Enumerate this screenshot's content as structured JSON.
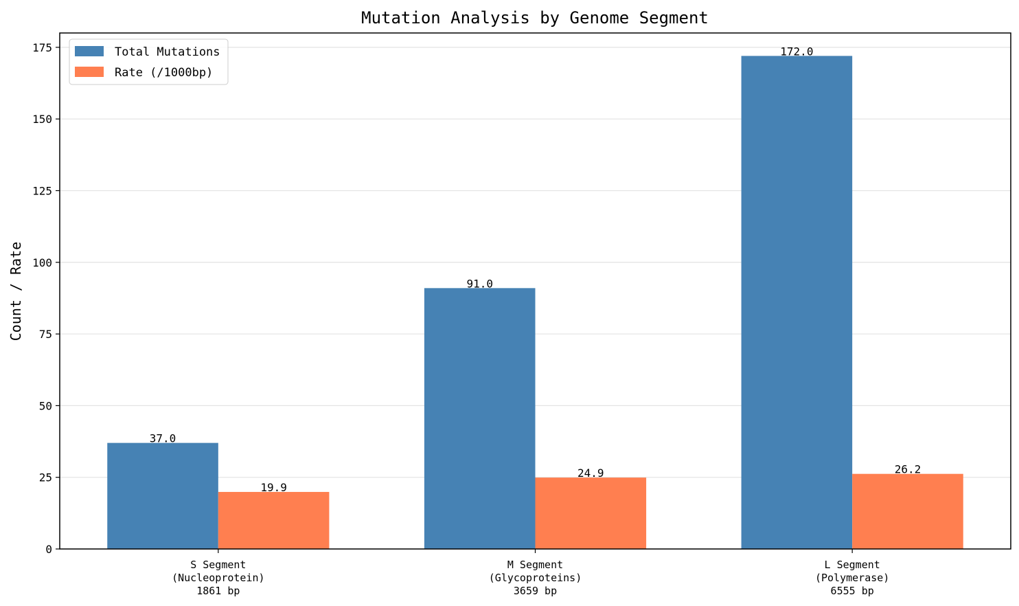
{
  "chart_data": {
    "type": "bar",
    "title": "Mutation Analysis by Genome Segment",
    "xlabel": "",
    "ylabel": "Count / Rate",
    "ylim": [
      0,
      180
    ],
    "yticks": [
      0,
      25,
      50,
      75,
      100,
      125,
      150,
      175
    ],
    "grid": "y",
    "legend_position": "top-left",
    "categories": [
      [
        "S Segment",
        "(Nucleoprotein)",
        "1861 bp"
      ],
      [
        "M Segment",
        "(Glycoproteins)",
        "3659 bp"
      ],
      [
        "L Segment",
        "(Polymerase)",
        "6555 bp"
      ]
    ],
    "series": [
      {
        "name": "Total Mutations",
        "color": "#4682B4",
        "values": [
          37.0,
          91.0,
          172.0
        ],
        "labels": [
          "37.0",
          "91.0",
          "172.0"
        ]
      },
      {
        "name": "Rate (/1000bp)",
        "color": "#FF7F50",
        "values": [
          19.9,
          24.9,
          26.2
        ],
        "labels": [
          "19.9",
          "24.9",
          "26.2"
        ]
      }
    ]
  }
}
